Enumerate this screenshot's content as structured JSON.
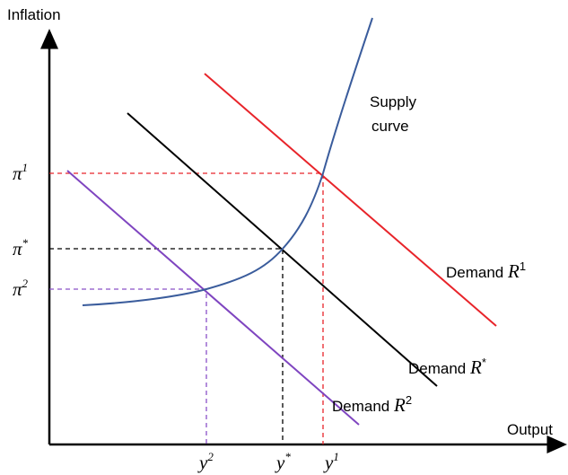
{
  "axes": {
    "y_label": "Inflation",
    "x_label": "Output"
  },
  "supply": {
    "label_line1": "Supply",
    "label_line2": "curve"
  },
  "demand": [
    {
      "text": "Demand",
      "var": "R",
      "sup": "1"
    },
    {
      "text": "Demand",
      "var": "R",
      "sup": "*"
    },
    {
      "text": "Demand",
      "var": "R",
      "sup": "2"
    }
  ],
  "y_ticks": [
    {
      "base": "π",
      "sup": "1"
    },
    {
      "base": "π",
      "sup": "*"
    },
    {
      "base": "π",
      "sup": "2"
    }
  ],
  "x_ticks": [
    {
      "base": "y",
      "sup": "2"
    },
    {
      "base": "y",
      "sup": "*"
    },
    {
      "base": "y",
      "sup": "1"
    }
  ]
}
